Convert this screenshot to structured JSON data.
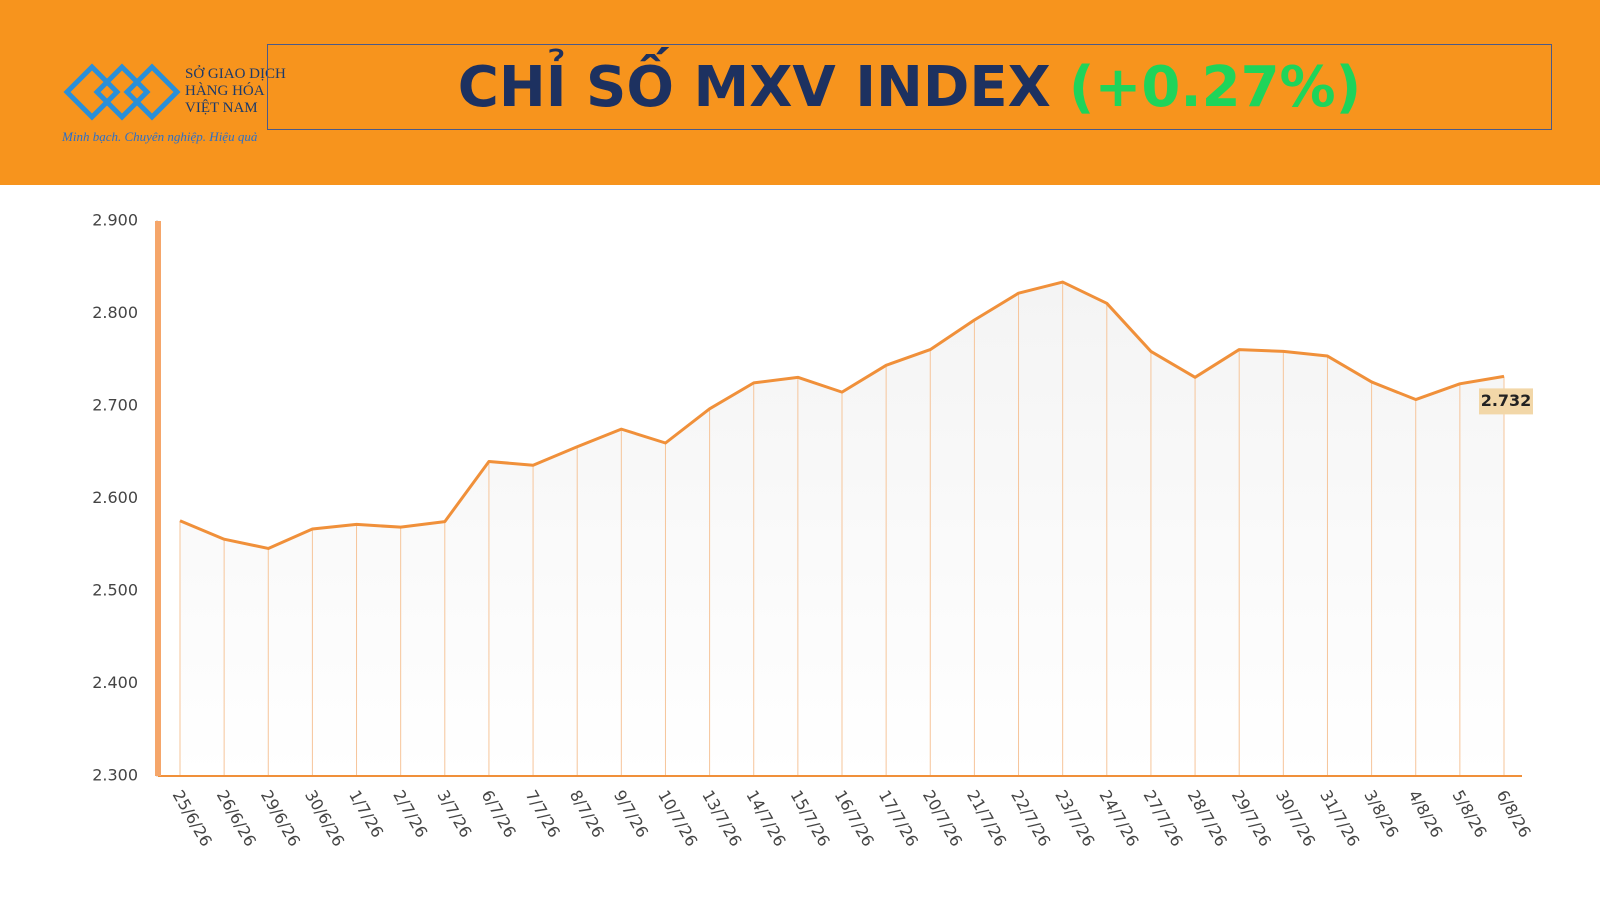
{
  "header": {
    "logo_lines": [
      "SỞ GIAO DỊCH",
      "HÀNG HÓA",
      "VIỆT NAM"
    ],
    "tagline": "Minh bạch. Chuyên nghiệp. Hiệu quả",
    "title": "CHỈ SỐ MXV INDEX",
    "change": "(+0.27%)"
  },
  "chart_data": {
    "type": "line",
    "categories": [
      "25/6/26",
      "26/6/26",
      "29/6/26",
      "30/6/26",
      "1/7/26",
      "2/7/26",
      "3/7/26",
      "6/7/26",
      "7/7/26",
      "8/7/26",
      "9/7/26",
      "10/7/26",
      "13/7/26",
      "14/7/26",
      "15/7/26",
      "16/7/26",
      "17/7/26",
      "20/7/26",
      "21/7/26",
      "22/7/26",
      "23/7/26",
      "24/7/26",
      "27/7/26",
      "28/7/26",
      "29/7/26",
      "30/7/26",
      "31/7/26",
      "3/8/26",
      "4/8/26",
      "5/8/26",
      "6/8/26"
    ],
    "values": [
      2.576,
      2.556,
      2.546,
      2.567,
      2.572,
      2.569,
      2.575,
      2.64,
      2.636,
      2.656,
      2.675,
      2.66,
      2.697,
      2.725,
      2.731,
      2.715,
      2.744,
      2.761,
      2.793,
      2.822,
      2.834,
      2.811,
      2.759,
      2.731,
      2.761,
      2.759,
      2.754,
      2.726,
      2.707,
      2.724,
      2.732
    ],
    "color": "#f0903a",
    "ylim": [
      2.3,
      2.9
    ],
    "yticks": [
      {
        "value": 2.3,
        "label": "2.300"
      },
      {
        "value": 2.4,
        "label": "2.400"
      },
      {
        "value": 2.5,
        "label": "2.500"
      },
      {
        "value": 2.6,
        "label": "2.600"
      },
      {
        "value": 2.7,
        "label": "2.700"
      },
      {
        "value": 2.8,
        "label": "2.800"
      },
      {
        "value": 2.9,
        "label": "2.900"
      }
    ]
  }
}
